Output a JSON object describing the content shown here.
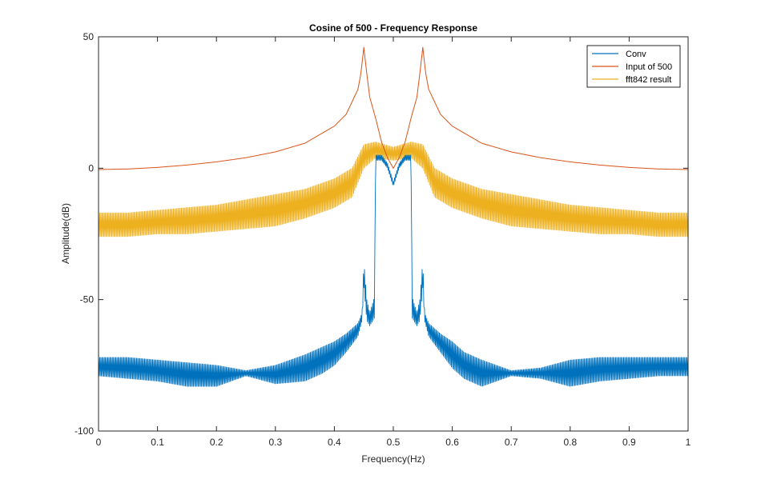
{
  "chart_data": {
    "type": "line",
    "title": "Cosine of 500 - Frequency Response",
    "xlabel": "Frequency(Hz)",
    "ylabel": "Amplitude(dB)",
    "xlim": [
      0,
      1
    ],
    "ylim": [
      -100,
      50
    ],
    "xticks": [
      0,
      0.1,
      0.2,
      0.3,
      0.4,
      0.5,
      0.6,
      0.7,
      0.8,
      0.9,
      1
    ],
    "xtick_labels": [
      "0",
      "0.1",
      "0.2",
      "0.3",
      "0.4",
      "0.5",
      "0.6",
      "0.7",
      "0.8",
      "0.9",
      "1"
    ],
    "yticks": [
      -100,
      -50,
      0,
      50
    ],
    "ytick_labels": [
      "-100",
      "-50",
      "0",
      "50"
    ],
    "grid": false,
    "legend_position": "top-right",
    "series": [
      {
        "name": "Conv",
        "color": "#0072BD",
        "style": "oscillating",
        "x": [
          0,
          0.05,
          0.1,
          0.15,
          0.2,
          0.25,
          0.3,
          0.35,
          0.38,
          0.4,
          0.42,
          0.44,
          0.447,
          0.45,
          0.455,
          0.46,
          0.468,
          0.47,
          0.48,
          0.49,
          0.5,
          0.51,
          0.52,
          0.53,
          0.532,
          0.54,
          0.545,
          0.55,
          0.553,
          0.56,
          0.58,
          0.6,
          0.62,
          0.65,
          0.7,
          0.75,
          0.8,
          0.85,
          0.9,
          0.95,
          1
        ],
        "upper": [
          -72,
          -72,
          -73,
          -74,
          -75,
          -77,
          -75,
          -71,
          -68,
          -66,
          -63,
          -59,
          -55,
          -35,
          -50,
          -55,
          -49,
          5,
          5,
          2,
          -5,
          2,
          5,
          5,
          -49,
          -55,
          -50,
          -35,
          -55,
          -59,
          -63,
          -66,
          -70,
          -73,
          -77,
          -76,
          -73,
          -72,
          -72,
          -72,
          -72
        ],
        "lower": [
          -79,
          -80,
          -81,
          -83,
          -83,
          -79,
          -82,
          -81,
          -78,
          -75,
          -70,
          -64,
          -58,
          -45,
          -58,
          -60,
          -57,
          3,
          3,
          0,
          -7,
          0,
          3,
          3,
          -57,
          -60,
          -58,
          -45,
          -58,
          -64,
          -70,
          -76,
          -80,
          -83,
          -79,
          -80,
          -83,
          -81,
          -80,
          -79,
          -79
        ]
      },
      {
        "name": "Input of 500",
        "color": "#D95319",
        "style": "line",
        "x": [
          0,
          0.05,
          0.1,
          0.15,
          0.2,
          0.25,
          0.3,
          0.35,
          0.4,
          0.42,
          0.44,
          0.445,
          0.45,
          0.455,
          0.46,
          0.47,
          0.48,
          0.49,
          0.5,
          0.51,
          0.52,
          0.53,
          0.54,
          0.545,
          0.55,
          0.555,
          0.56,
          0.58,
          0.6,
          0.65,
          0.7,
          0.75,
          0.8,
          0.85,
          0.9,
          0.95,
          1
        ],
        "y": [
          -0.5,
          -0.3,
          0.3,
          1.2,
          2.4,
          4,
          6.2,
          9.5,
          16,
          20.5,
          30,
          36,
          46,
          36,
          27,
          19,
          10,
          4,
          0,
          4,
          10,
          19,
          27,
          36,
          46,
          36,
          30,
          20.5,
          16,
          9.5,
          6.2,
          4,
          2.4,
          1.2,
          0.3,
          -0.3,
          -0.5
        ]
      },
      {
        "name": "fft842 result",
        "color": "#EDB120",
        "style": "oscillating",
        "x": [
          0,
          0.05,
          0.1,
          0.15,
          0.2,
          0.25,
          0.3,
          0.35,
          0.4,
          0.43,
          0.45,
          0.47,
          0.5,
          0.53,
          0.55,
          0.57,
          0.6,
          0.65,
          0.7,
          0.75,
          0.8,
          0.85,
          0.9,
          0.95,
          1
        ],
        "upper": [
          -17,
          -17,
          -16,
          -15,
          -14,
          -12,
          -10,
          -8,
          -4,
          0,
          9,
          10,
          8,
          10,
          9,
          0,
          -4,
          -8,
          -10,
          -12,
          -14,
          -15,
          -16,
          -17,
          -17
        ],
        "lower": [
          -26,
          -26,
          -25,
          -25,
          -24,
          -23,
          -22,
          -19,
          -15,
          -11,
          0,
          4,
          3,
          4,
          0,
          -11,
          -15,
          -19,
          -22,
          -23,
          -24,
          -25,
          -25,
          -26,
          -26
        ]
      }
    ]
  }
}
